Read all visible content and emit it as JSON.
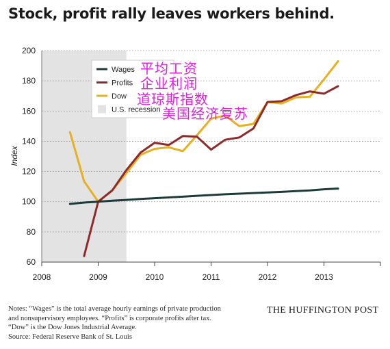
{
  "title": "Stock, profit rally leaves workers behind.",
  "notes": [
    "Notes: “Wages” is the total average hourly earnings of private production",
    "and nonsupervisory employees. “Profits” is corporate profits after tax.",
    "“Dow” is the Dow Jones Industrial Average.",
    "Source: Federal Reserve Bank of St. Louis"
  ],
  "brand": "THE HUFFINGTON POST",
  "overlay_text": [
    "平均工资",
    "企业利润",
    "道琼斯指数",
    "美国经济复苏"
  ],
  "colors": {
    "wages": "#1c3a3a",
    "profits": "#8e2a2a",
    "dow": "#e6b020",
    "recession": "#e3e3e3",
    "overlay": "#dd22dd"
  },
  "chart_data": {
    "type": "line",
    "ylabel": "Index",
    "xlabel": "",
    "ylim": [
      60,
      200
    ],
    "xlim": [
      2008,
      2014.0
    ],
    "yticks": [
      60,
      80,
      100,
      120,
      140,
      160,
      180,
      200
    ],
    "xticks": [
      "2008",
      "2009",
      "2010",
      "2011",
      "2012",
      "2013"
    ],
    "grid": true,
    "legend_position": "top-left",
    "recession": {
      "label": "U.S. recession",
      "start": 2008.0,
      "end": 2009.5
    },
    "series": [
      {
        "name": "Wages",
        "x": [
          2008.5,
          2008.75,
          2009.0,
          2009.25,
          2009.5,
          2009.75,
          2010.0,
          2010.25,
          2010.5,
          2010.75,
          2011.0,
          2011.25,
          2011.5,
          2011.75,
          2012.0,
          2012.25,
          2012.5,
          2012.75,
          2013.0,
          2013.25
        ],
        "y": [
          98.5,
          99.4,
          100.0,
          100.7,
          101.2,
          101.8,
          102.3,
          102.8,
          103.3,
          103.9,
          104.4,
          104.9,
          105.3,
          105.7,
          106.1,
          106.5,
          107.0,
          107.5,
          108.2,
          108.7
        ]
      },
      {
        "name": "Profits",
        "x": [
          2008.75,
          2009.0,
          2009.25,
          2009.5,
          2009.75,
          2010.0,
          2010.25,
          2010.5,
          2010.75,
          2011.0,
          2011.25,
          2011.5,
          2011.75,
          2012.0,
          2012.25,
          2012.5,
          2012.75,
          2013.0,
          2013.25
        ],
        "y": [
          64.0,
          100.0,
          107.5,
          121.0,
          132.5,
          139.0,
          137.5,
          143.5,
          143.0,
          134.5,
          141.0,
          142.5,
          148.5,
          166.0,
          166.5,
          170.5,
          173.0,
          171.5,
          176.5
        ]
      },
      {
        "name": "Dow",
        "x": [
          2008.5,
          2008.75,
          2009.0,
          2009.25,
          2009.5,
          2009.75,
          2010.0,
          2010.25,
          2010.5,
          2010.75,
          2011.0,
          2011.25,
          2011.5,
          2011.75,
          2012.0,
          2012.25,
          2012.5,
          2012.75,
          2013.0,
          2013.25
        ],
        "y": [
          146.0,
          113.5,
          100.0,
          107.5,
          119.0,
          131.0,
          135.0,
          136.0,
          133.5,
          144.0,
          155.0,
          157.0,
          150.0,
          151.5,
          166.0,
          165.0,
          169.0,
          169.5,
          181.0,
          193.0
        ]
      }
    ]
  }
}
